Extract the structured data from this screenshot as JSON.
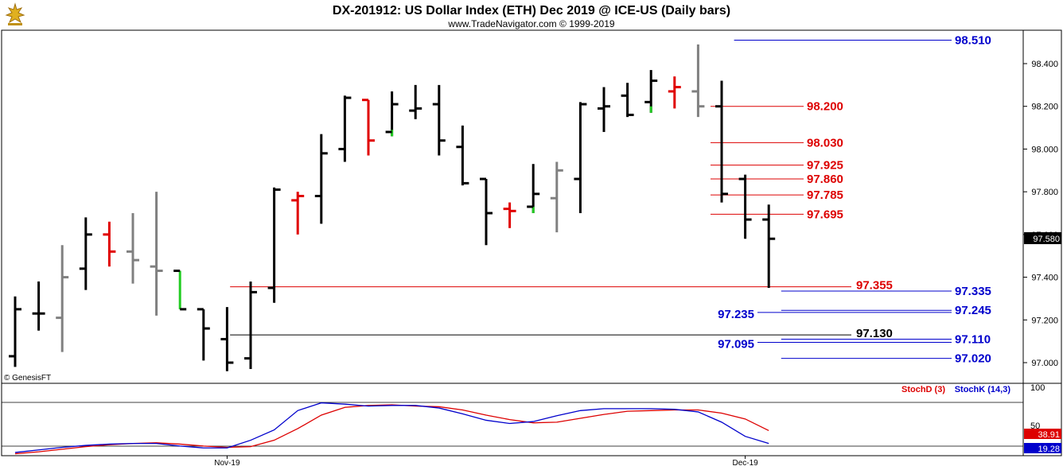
{
  "header": {
    "title": "DX-201912:  US Dollar Index (ETH) Dec 2019 @ ICE-US  (Daily bars)",
    "subtitle": "www.TradeNavigator.com © 1999-2019",
    "watermark": "© GenesisFT"
  },
  "colors": {
    "up": "#000000",
    "down": "#e00000",
    "flat_gray": "#808080",
    "green": "#22cc22",
    "blue_level": "#0000cc",
    "red_level": "#dd0000",
    "stoch_d": "#dd0000",
    "stoch_k": "#0000cc"
  },
  "chart_data": [
    {
      "type": "ohlc",
      "title": "DX-201912:  US Dollar Index (ETH) Dec 2019 @ ICE-US  (Daily bars)",
      "y_ticks": [
        "98.400",
        "98.200",
        "98.000",
        "97.800",
        "97.600",
        "97.400",
        "97.200",
        "97.000"
      ],
      "ylim": [
        96.95,
        98.52
      ],
      "last_price": "97.580",
      "x_labels": [
        {
          "text": "Nov-19",
          "bar": 9
        },
        {
          "text": "Dec-19",
          "bar": 31
        }
      ],
      "bars": [
        {
          "o": 97.03,
          "h": 97.31,
          "l": 96.98,
          "c": 97.25,
          "color": "up"
        },
        {
          "o": 97.23,
          "h": 97.38,
          "l": 97.15,
          "c": 97.23,
          "color": "up"
        },
        {
          "o": 97.21,
          "h": 97.55,
          "l": 97.05,
          "c": 97.4,
          "color": "gray"
        },
        {
          "o": 97.44,
          "h": 97.68,
          "l": 97.34,
          "c": 97.6,
          "color": "up"
        },
        {
          "o": 97.6,
          "h": 97.66,
          "l": 97.45,
          "c": 97.52,
          "color": "down"
        },
        {
          "o": 97.52,
          "h": 97.7,
          "l": 97.37,
          "c": 97.48,
          "color": "gray"
        },
        {
          "o": 97.45,
          "h": 97.8,
          "l": 97.22,
          "c": 97.43,
          "color": "gray"
        },
        {
          "o": 97.43,
          "h": 97.43,
          "l": 97.25,
          "c": 97.25,
          "color": "green_top",
          "split": 97.25
        },
        {
          "o": 97.25,
          "h": 97.25,
          "l": 97.01,
          "c": 97.16,
          "color": "up"
        },
        {
          "o": 97.11,
          "h": 97.26,
          "l": 96.96,
          "c": 97.0,
          "color": "up"
        },
        {
          "o": 97.02,
          "h": 97.38,
          "l": 96.97,
          "c": 97.33,
          "color": "up"
        },
        {
          "o": 97.35,
          "h": 97.82,
          "l": 97.28,
          "c": 97.81,
          "color": "up"
        },
        {
          "o": 97.76,
          "h": 97.8,
          "l": 97.6,
          "c": 97.78,
          "color": "down"
        },
        {
          "o": 97.78,
          "h": 98.07,
          "l": 97.65,
          "c": 97.98,
          "color": "up"
        },
        {
          "o": 98.0,
          "h": 98.25,
          "l": 97.94,
          "c": 98.24,
          "color": "up"
        },
        {
          "o": 98.23,
          "h": 98.23,
          "l": 97.97,
          "c": 98.04,
          "color": "down"
        },
        {
          "o": 98.08,
          "h": 98.27,
          "l": 98.06,
          "c": 98.21,
          "color": "up",
          "green_tail": true
        },
        {
          "o": 98.18,
          "h": 98.3,
          "l": 98.14,
          "c": 98.19,
          "color": "up"
        },
        {
          "o": 98.21,
          "h": 98.3,
          "l": 97.97,
          "c": 98.04,
          "color": "up"
        },
        {
          "o": 98.01,
          "h": 98.11,
          "l": 97.83,
          "c": 97.84,
          "color": "up"
        },
        {
          "o": 97.86,
          "h": 97.86,
          "l": 97.55,
          "c": 97.7,
          "color": "up"
        },
        {
          "o": 97.72,
          "h": 97.75,
          "l": 97.63,
          "c": 97.71,
          "color": "down"
        },
        {
          "o": 97.73,
          "h": 97.93,
          "l": 97.7,
          "c": 97.79,
          "color": "up",
          "green_tail": true
        },
        {
          "o": 97.77,
          "h": 97.94,
          "l": 97.61,
          "c": 97.9,
          "color": "gray"
        },
        {
          "o": 97.86,
          "h": 98.22,
          "l": 97.7,
          "c": 98.21,
          "color": "up"
        },
        {
          "o": 98.19,
          "h": 98.29,
          "l": 98.08,
          "c": 98.2,
          "color": "up"
        },
        {
          "o": 98.25,
          "h": 98.31,
          "l": 98.15,
          "c": 98.16,
          "color": "up"
        },
        {
          "o": 98.22,
          "h": 98.37,
          "l": 98.17,
          "c": 98.32,
          "color": "up",
          "green_tail": true
        },
        {
          "o": 98.27,
          "h": 98.34,
          "l": 98.19,
          "c": 98.29,
          "color": "down"
        },
        {
          "o": 98.27,
          "h": 98.49,
          "l": 98.15,
          "c": 98.2,
          "color": "gray"
        },
        {
          "o": 98.2,
          "h": 98.32,
          "l": 97.75,
          "c": 97.79,
          "color": "up"
        },
        {
          "o": 97.86,
          "h": 97.88,
          "l": 97.58,
          "c": 97.67,
          "color": "up"
        },
        {
          "o": 97.67,
          "h": 97.74,
          "l": 97.35,
          "c": 97.58,
          "color": "up"
        }
      ],
      "levels": [
        {
          "price": 98.51,
          "label": "98.510",
          "color": "blue",
          "x_from": 31,
          "label_side": "right"
        },
        {
          "price": 98.2,
          "label": "98.200",
          "color": "red",
          "x_from": 30,
          "label_side": "mid"
        },
        {
          "price": 98.03,
          "label": "98.030",
          "color": "red",
          "x_from": 30,
          "label_side": "mid"
        },
        {
          "price": 97.925,
          "label": "97.925",
          "color": "red",
          "x_from": 30,
          "label_side": "mid"
        },
        {
          "price": 97.86,
          "label": "97.860",
          "color": "red",
          "x_from": 30,
          "label_side": "mid"
        },
        {
          "price": 97.785,
          "label": "97.785",
          "color": "red",
          "x_from": 30,
          "label_side": "mid"
        },
        {
          "price": 97.695,
          "label": "97.695",
          "color": "red",
          "x_from": 30,
          "label_side": "mid"
        },
        {
          "price": 97.355,
          "label": "97.355",
          "color": "red",
          "x_from": 9.6,
          "label_side": "far"
        },
        {
          "price": 97.335,
          "label": "97.335",
          "color": "blue",
          "x_from": 33,
          "label_side": "right"
        },
        {
          "price": 97.245,
          "label": "97.245",
          "color": "blue",
          "x_from": 33,
          "label_side": "right"
        },
        {
          "price": 97.235,
          "label": "97.235",
          "color": "blue",
          "x_from": 33,
          "label_side": "left"
        },
        {
          "price": 97.13,
          "label": "97.130",
          "color": "black",
          "x_from": 9.6,
          "label_side": "far"
        },
        {
          "price": 97.11,
          "label": "97.110",
          "color": "blue",
          "x_from": 33,
          "label_side": "right"
        },
        {
          "price": 97.095,
          "label": "97.095",
          "color": "blue",
          "x_from": 33,
          "label_side": "left"
        },
        {
          "price": 97.02,
          "label": "97.020",
          "color": "blue",
          "x_from": 33,
          "label_side": "right"
        }
      ]
    },
    {
      "type": "line",
      "title": "",
      "ylim": [
        0,
        100
      ],
      "y_ticks": [
        "100",
        "50"
      ],
      "legend": [
        "StochD (3)",
        "StochK (14,3)"
      ],
      "last_values": {
        "stochD": "38.91",
        "stochK": "19.28"
      },
      "series": [
        {
          "name": "StochD (3)",
          "color": "#dd0000",
          "values": [
            3,
            6,
            10,
            14,
            17,
            19,
            20,
            18,
            15,
            13,
            14,
            24,
            42,
            63,
            75,
            78,
            79,
            77,
            76,
            71,
            63,
            56,
            51,
            52,
            58,
            64,
            69,
            70,
            71,
            71,
            66,
            57,
            39
          ]
        },
        {
          "name": "StochK (14,3)",
          "color": "#0000cc",
          "values": [
            5,
            9,
            13,
            16,
            18,
            19,
            19,
            15,
            12,
            12,
            24,
            40,
            70,
            82,
            80,
            77,
            78,
            78,
            74,
            65,
            55,
            50,
            53,
            62,
            70,
            73,
            73,
            73,
            72,
            68,
            52,
            30,
            19
          ]
        }
      ]
    }
  ]
}
